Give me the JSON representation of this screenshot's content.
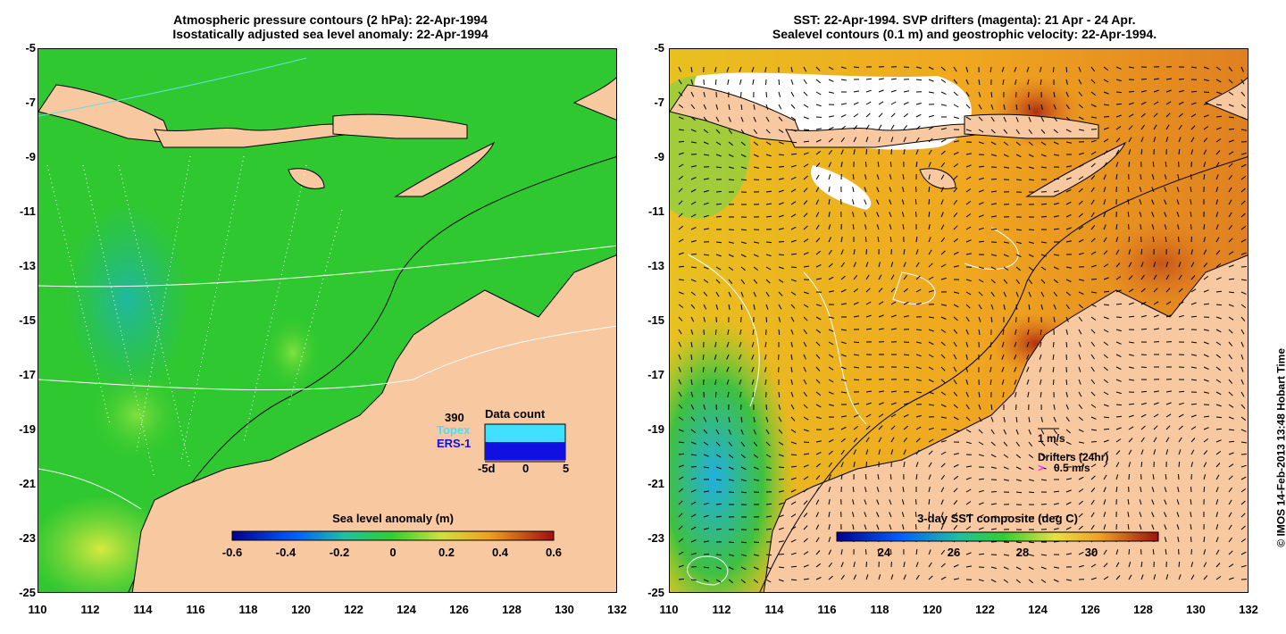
{
  "left": {
    "title_line1": "Atmospheric pressure contours (2 hPa): 22-Apr-1994",
    "title_line2": "Isostatically adjusted sea level anomaly: 22-Apr-1994",
    "colorbar_label": "Sea level anomaly (m)",
    "colorbar_ticks": [
      "-0.6",
      "-0.4",
      "-0.2",
      "0",
      "0.2",
      "0.4",
      "0.6"
    ],
    "data_count": {
      "title": "Data count",
      "total": "390",
      "series": [
        {
          "name": "Topex",
          "color": "#40e0ff"
        },
        {
          "name": "ERS-1",
          "color": "#1010e0"
        }
      ],
      "axis_ticks": [
        "-5d",
        "0",
        "5"
      ]
    }
  },
  "right": {
    "title_line1": "SST: 22-Apr-1994. SVP drifters (magenta): 21 Apr - 24 Apr.",
    "title_line2": "Sealevel contours (0.1 m) and geostrophic velocity: 22-Apr-1994.",
    "colorbar_label": "3-day SST composite (deg C)",
    "colorbar_ticks": [
      "24",
      "26",
      "28",
      "30"
    ],
    "velocity_scale": "1 m/s",
    "drifters_label": "Drifters (24hr)",
    "drifter_scale": "0.5 m/s",
    "drifter_symbol": ">"
  },
  "axes": {
    "y_ticks": [
      "-5",
      "-7",
      "-9",
      "-11",
      "-13",
      "-15",
      "-17",
      "-19",
      "-21",
      "-23",
      "-25"
    ],
    "x_ticks": [
      "110",
      "112",
      "114",
      "116",
      "118",
      "120",
      "122",
      "124",
      "126",
      "128",
      "130",
      "132"
    ]
  },
  "copyright": "© IMOS 14-Feb-2013 13:48 Hobart Time",
  "colors": {
    "land": "#f8c8a0",
    "ocean_sla": "#28c828",
    "sst_warm": "#f0a020",
    "sst_hot": "#c04010"
  }
}
